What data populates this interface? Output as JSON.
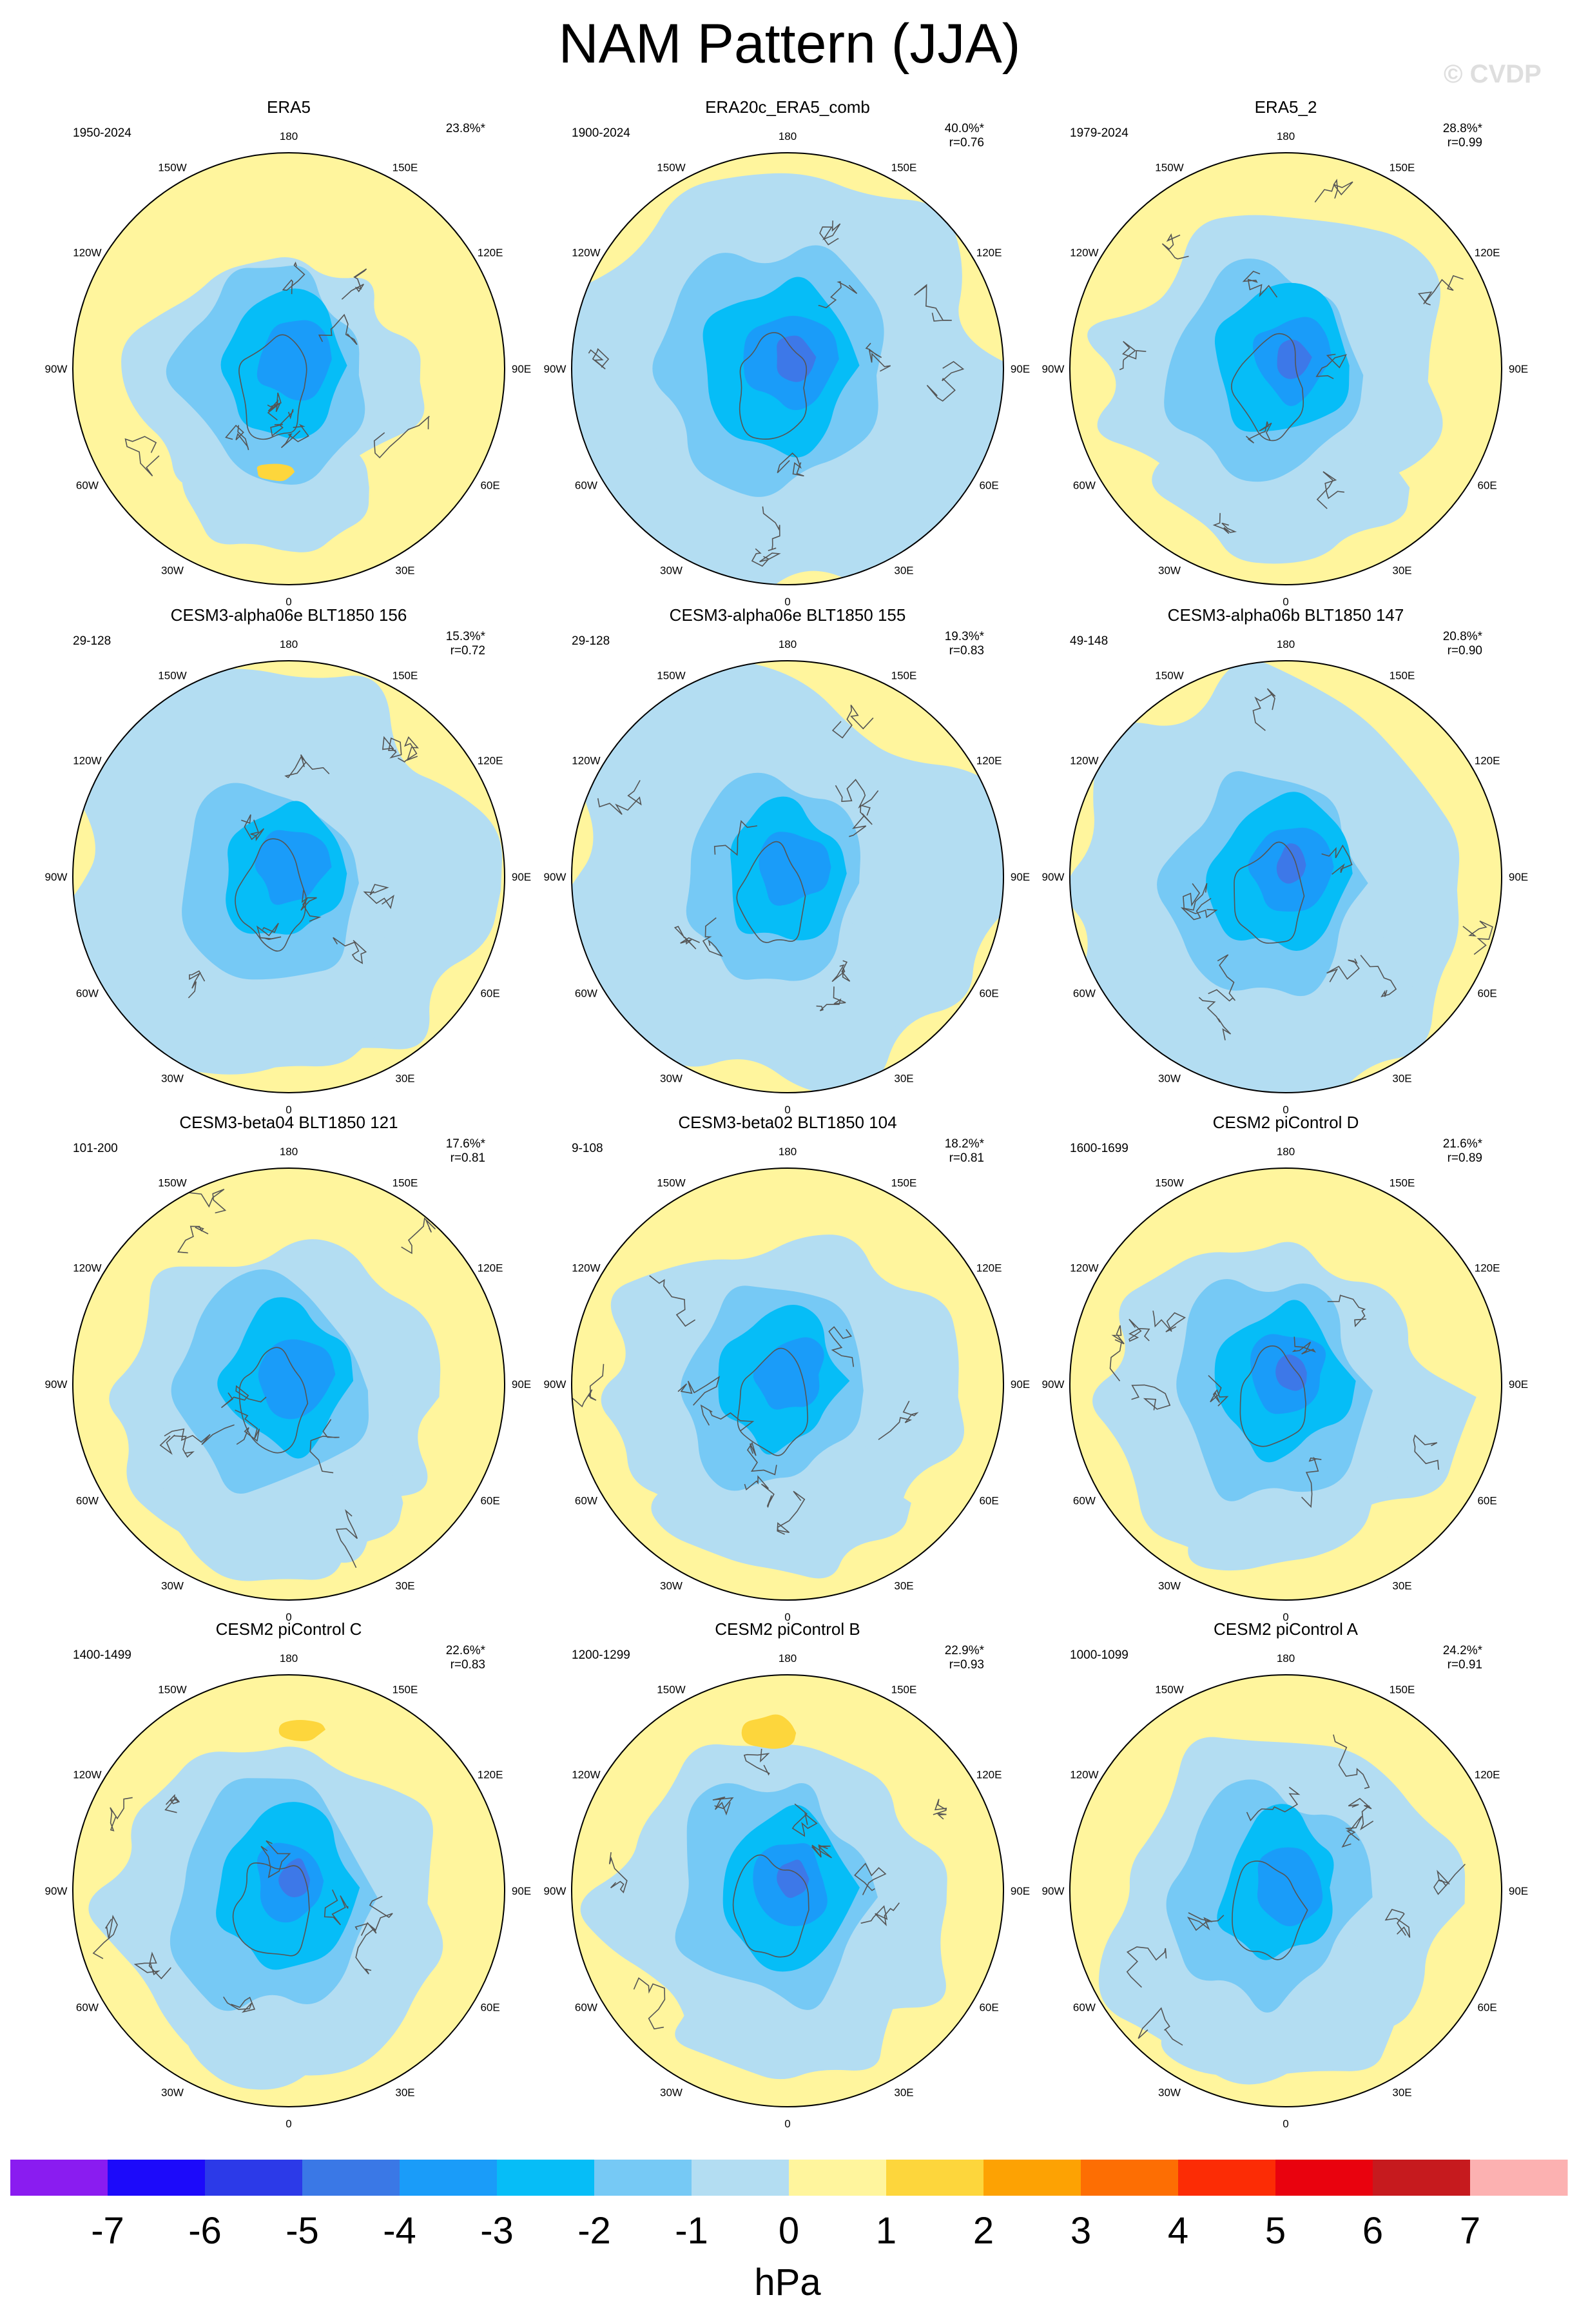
{
  "title": "NAM Pattern (JJA)",
  "watermark": "© CVDP",
  "colors": {
    "neg_light": "#b3ddf2",
    "neg_1": "#76c9f5",
    "neg_2": "#06bdf7",
    "neg_3": "#1a9cf9",
    "neg_4": "#3d78e8",
    "pos_0": "#fff59d",
    "pos_1": "#fdd63c",
    "coast": "#555555",
    "outline": "#000000"
  },
  "longitude_labels": [
    "180",
    "150E",
    "120E",
    "90E",
    "60E",
    "30E",
    "0",
    "30W",
    "60W",
    "90W",
    "120W",
    "150W"
  ],
  "panels": [
    {
      "title": "ERA5",
      "years": "1950-2024",
      "pct": "23.8%*",
      "r": "",
      "shift": [
        0,
        0
      ],
      "size": 1.05,
      "neg_extent": "small"
    },
    {
      "title": "ERA20c_ERA5_comb",
      "years": "1900-2024",
      "pct": "40.0%*",
      "r": "r=0.76",
      "shift": [
        0,
        0
      ],
      "size": 1.25,
      "neg_extent": "large"
    },
    {
      "title": "ERA5_2",
      "years": "1979-2024",
      "pct": "28.8%*",
      "r": "r=0.99",
      "shift": [
        0,
        0
      ],
      "size": 1.1,
      "neg_extent": "medium"
    },
    {
      "title": "CESM3-alpha06e BLT1850 156",
      "years": "29-128",
      "pct": "15.3%*",
      "r": "r=0.72",
      "shift": [
        0,
        0
      ],
      "size": 1.0,
      "neg_extent": "large"
    },
    {
      "title": "CESM3-alpha06e BLT1850 155",
      "years": "29-128",
      "pct": "19.3%*",
      "r": "r=0.83",
      "shift": [
        0,
        0
      ],
      "size": 1.0,
      "neg_extent": "large"
    },
    {
      "title": "CESM3-alpha06b BLT1850 147",
      "years": "49-148",
      "pct": "20.8%*",
      "r": "r=0.90",
      "shift": [
        0,
        0
      ],
      "size": 1.1,
      "neg_extent": "large"
    },
    {
      "title": "CESM3-beta04 BLT1850 121",
      "years": "101-200",
      "pct": "17.6%*",
      "r": "r=0.81",
      "shift": [
        0,
        0
      ],
      "size": 1.05,
      "neg_extent": "medium"
    },
    {
      "title": "CESM3-beta02 BLT1850 104",
      "years": "9-108",
      "pct": "18.2%*",
      "r": "r=0.81",
      "shift": [
        0,
        0
      ],
      "size": 1.0,
      "neg_extent": "medium"
    },
    {
      "title": "CESM2 piControl D",
      "years": "1600-1699",
      "pct": "21.6%*",
      "r": "r=0.89",
      "shift": [
        0,
        0
      ],
      "size": 1.1,
      "neg_extent": "medium"
    },
    {
      "title": "CESM2 piControl C",
      "years": "1400-1499",
      "pct": "22.6%*",
      "r": "r=0.83",
      "shift": [
        0,
        0
      ],
      "size": 1.1,
      "neg_extent": "medium"
    },
    {
      "title": "CESM2 piControl B",
      "years": "1200-1299",
      "pct": "22.9%*",
      "r": "r=0.93",
      "shift": [
        0,
        0
      ],
      "size": 1.1,
      "neg_extent": "medium"
    },
    {
      "title": "CESM2 piControl A",
      "years": "1000-1099",
      "pct": "24.2%*",
      "r": "r=0.91",
      "shift": [
        0,
        0
      ],
      "size": 1.05,
      "neg_extent": "medium"
    }
  ],
  "colorbar": {
    "labels": [
      "-7",
      "-6",
      "-5",
      "-4",
      "-3",
      "-2",
      "-1",
      "0",
      "1",
      "2",
      "3",
      "4",
      "5",
      "6",
      "7"
    ],
    "colors": [
      "#8a1cf0",
      "#1c0afa",
      "#2c3ae8",
      "#3a78e6",
      "#1a9cf9",
      "#06bdf7",
      "#76c9f5",
      "#b3ddf2",
      "#fff59d",
      "#fdd63c",
      "#fda203",
      "#fd6e03",
      "#fc2c05",
      "#e9020e",
      "#c61a1e",
      "#fcb1b1"
    ],
    "unit": "hPa"
  }
}
